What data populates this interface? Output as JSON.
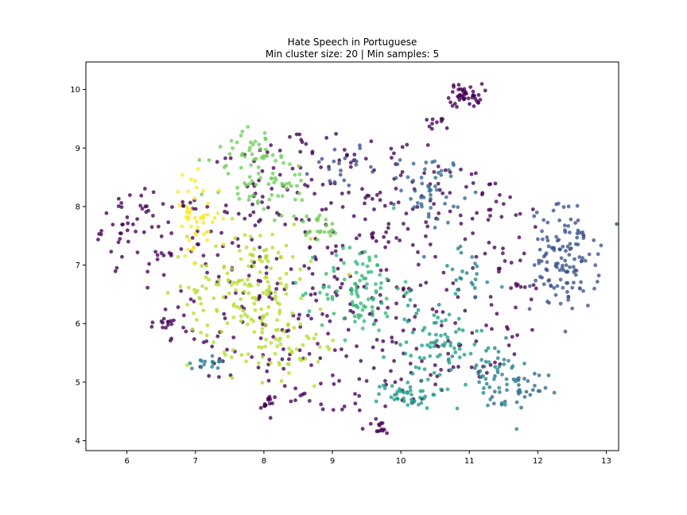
{
  "chart_data": {
    "type": "scatter",
    "title": "Hate Speech in Portuguese",
    "subtitle": "Min cluster size: 20 | Min samples: 5",
    "xlabel": "",
    "ylabel": "",
    "xlim": [
      5.4,
      13.18
    ],
    "ylim": [
      3.83,
      10.47
    ],
    "xticks": [
      6,
      7,
      8,
      9,
      10,
      11,
      12,
      13
    ],
    "yticks": [
      4,
      5,
      6,
      7,
      8,
      9,
      10
    ],
    "grid": false,
    "legend": "none",
    "colors": {
      "noise": "#440154",
      "c_blue1": "#3b528b",
      "c_blue2": "#31688e",
      "c_teal1": "#26828e",
      "c_teal2": "#1f9e89",
      "c_green1": "#35b779",
      "c_green2": "#6ece58",
      "c_lime": "#b5de2b",
      "c_yellow": "#fde725"
    },
    "clusters": [
      {
        "color": "#440154",
        "cx": 10.95,
        "cy": 9.9,
        "sx": 0.12,
        "sy": 0.1,
        "n": 45
      },
      {
        "color": "#440154",
        "cx": 10.45,
        "cy": 9.4,
        "sx": 0.12,
        "sy": 0.07,
        "n": 10
      },
      {
        "color": "#440154",
        "cx": 8.05,
        "cy": 4.62,
        "sx": 0.05,
        "sy": 0.08,
        "n": 12
      },
      {
        "color": "#440154",
        "cx": 9.65,
        "cy": 4.22,
        "sx": 0.12,
        "sy": 0.06,
        "n": 14
      },
      {
        "color": "#440154",
        "cx": 6.6,
        "cy": 6.0,
        "sx": 0.08,
        "sy": 0.06,
        "n": 12
      },
      {
        "color": "#440154",
        "cx": 6.0,
        "cy": 7.65,
        "sx": 0.18,
        "sy": 0.3,
        "n": 40
      },
      {
        "color": "#3b528b",
        "cx": 12.4,
        "cy": 7.1,
        "sx": 0.25,
        "sy": 0.45,
        "n": 130
      },
      {
        "color": "#3b528b",
        "cx": 9.2,
        "cy": 8.75,
        "sx": 0.25,
        "sy": 0.2,
        "n": 22
      },
      {
        "color": "#31688e",
        "cx": 10.45,
        "cy": 8.3,
        "sx": 0.22,
        "sy": 0.3,
        "n": 50
      },
      {
        "color": "#31688e",
        "cx": 11.75,
        "cy": 4.8,
        "sx": 0.2,
        "sy": 0.2,
        "n": 30
      },
      {
        "color": "#26828e",
        "cx": 11.35,
        "cy": 5.1,
        "sx": 0.25,
        "sy": 0.3,
        "n": 45
      },
      {
        "color": "#26828e",
        "cx": 11.0,
        "cy": 6.85,
        "sx": 0.25,
        "sy": 0.25,
        "n": 22
      },
      {
        "color": "#26828e",
        "cx": 7.2,
        "cy": 5.35,
        "sx": 0.12,
        "sy": 0.06,
        "n": 16
      },
      {
        "color": "#1f9e89",
        "cx": 10.5,
        "cy": 5.6,
        "sx": 0.35,
        "sy": 0.4,
        "n": 80
      },
      {
        "color": "#1f9e89",
        "cx": 10.1,
        "cy": 4.8,
        "sx": 0.22,
        "sy": 0.12,
        "n": 40
      },
      {
        "color": "#35b779",
        "cx": 9.4,
        "cy": 6.6,
        "sx": 0.3,
        "sy": 0.4,
        "n": 95
      },
      {
        "color": "#6ece58",
        "cx": 8.0,
        "cy": 8.4,
        "sx": 0.4,
        "sy": 0.35,
        "n": 70
      },
      {
        "color": "#6ece58",
        "cx": 7.9,
        "cy": 9.05,
        "sx": 0.22,
        "sy": 0.15,
        "n": 22
      },
      {
        "color": "#6ece58",
        "cx": 8.8,
        "cy": 7.65,
        "sx": 0.15,
        "sy": 0.12,
        "n": 22
      },
      {
        "color": "#b5de2b",
        "cx": 7.8,
        "cy": 6.6,
        "sx": 0.45,
        "sy": 0.55,
        "n": 170
      },
      {
        "color": "#b5de2b",
        "cx": 8.5,
        "cy": 5.6,
        "sx": 0.3,
        "sy": 0.25,
        "n": 40
      },
      {
        "color": "#fde725",
        "cx": 7.0,
        "cy": 7.8,
        "sx": 0.18,
        "sy": 0.35,
        "n": 50
      }
    ],
    "noise_scatter": {
      "color": "#440154",
      "x_range": [
        6.3,
        12.0
      ],
      "y_range": [
        4.4,
        9.3
      ],
      "n": 520
    },
    "point_alpha": 0.78
  }
}
